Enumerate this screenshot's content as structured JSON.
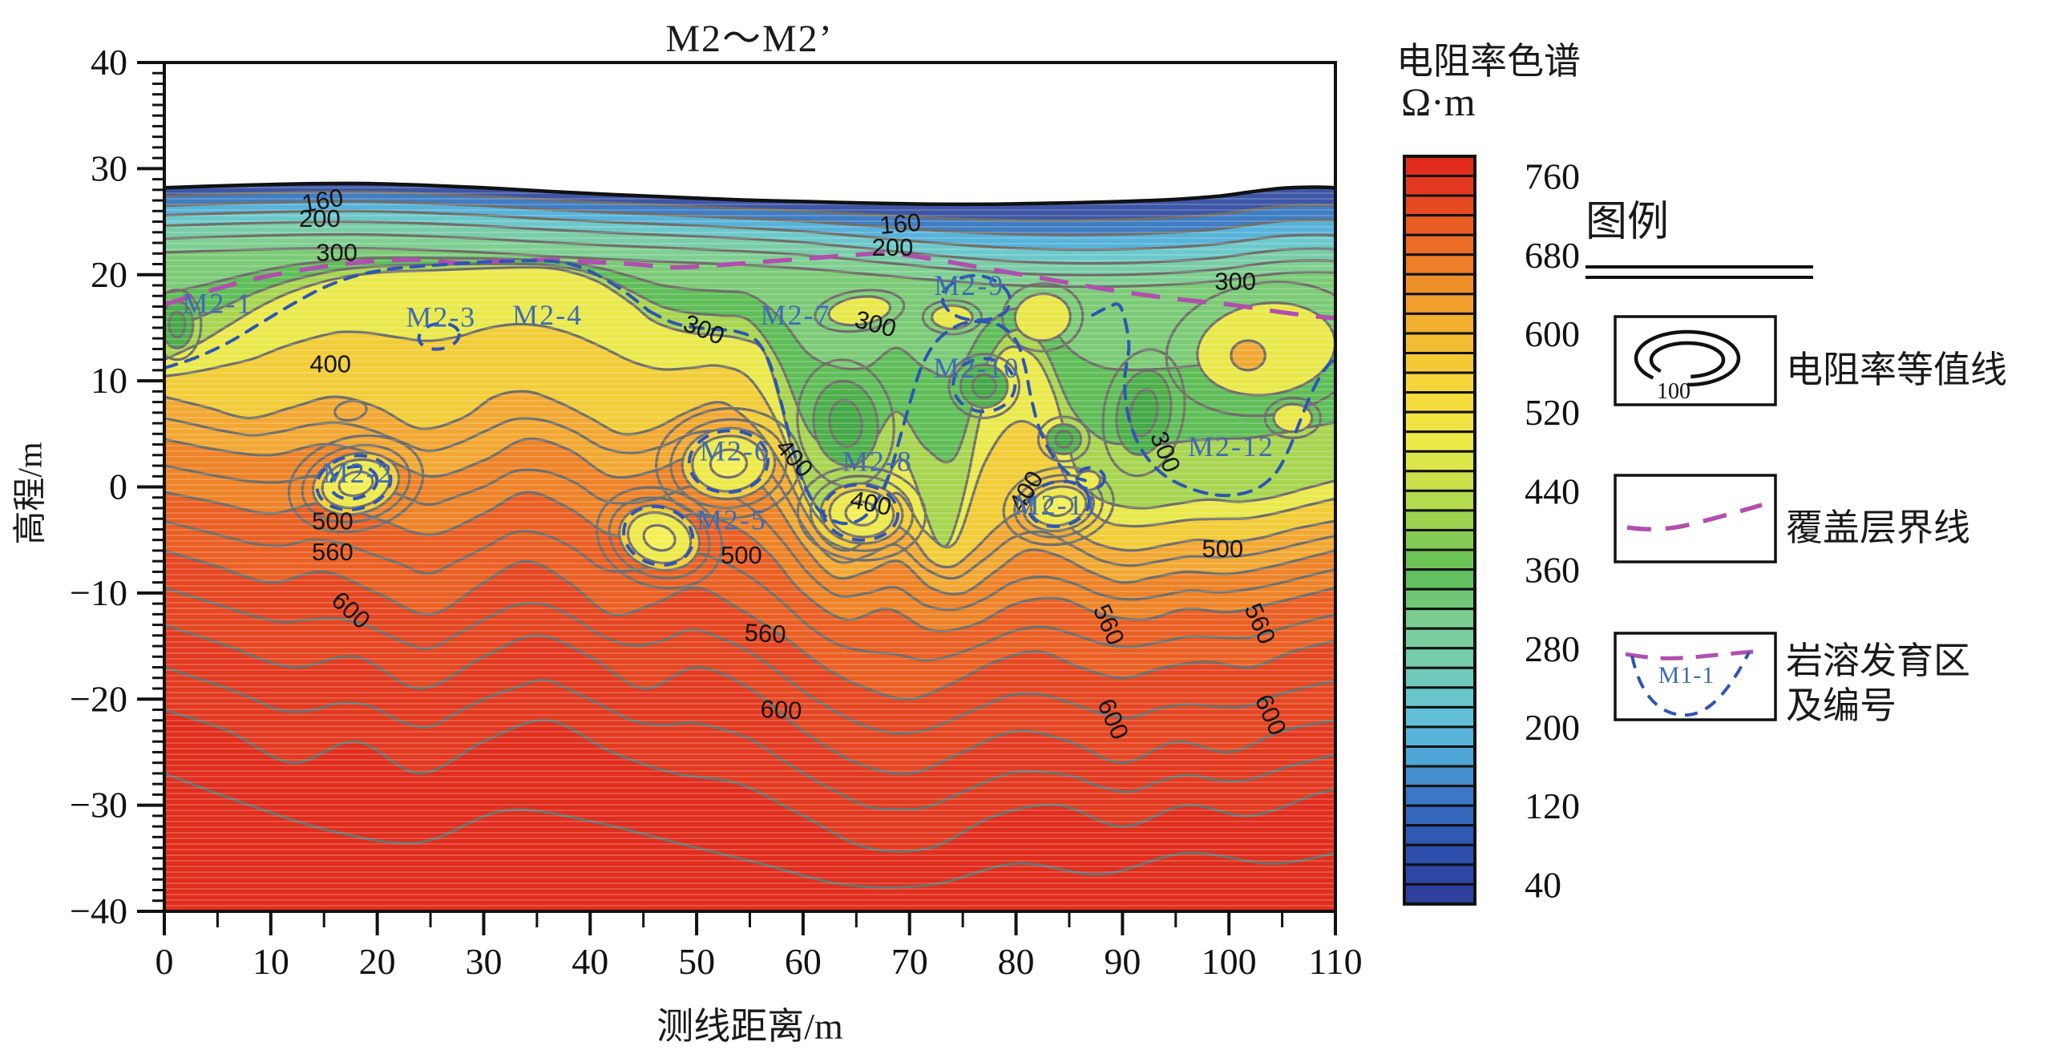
{
  "figure": {
    "title": "M2～M2’"
  },
  "axes": {
    "x_label": "测线距离/m",
    "y_label": "高程/m",
    "x_major_ticks": [
      "0",
      "10",
      "20",
      "30",
      "40",
      "50",
      "60",
      "70",
      "80",
      "90",
      "100",
      "110"
    ],
    "y_major_ticks": [
      "40",
      "30",
      "20",
      "10",
      "0",
      "-10",
      "-20",
      "-30",
      "-40"
    ]
  },
  "colorbar": {
    "title": "电阻率色谱",
    "units": "Ω·m",
    "tick_labels": [
      "760",
      "680",
      "600",
      "520",
      "440",
      "360",
      "280",
      "200",
      "120",
      "40"
    ]
  },
  "legend": {
    "header": "图例",
    "items": [
      {
        "name": "ground-double-line",
        "label": ""
      },
      {
        "name": "resistivity-contour",
        "label": "电阻率等值线",
        "symbol_text": "100"
      },
      {
        "name": "overburden-boundary",
        "label": "覆盖层界线"
      },
      {
        "name": "karst-zone",
        "label_line1": "岩溶发育区",
        "label_line2": "及编号",
        "symbol_text": "M1-1"
      }
    ]
  },
  "chart_data": {
    "type": "contour",
    "title": "M2～M2’",
    "xlabel": "测线距离/m",
    "ylabel": "高程/m",
    "x_range": [
      0,
      110
    ],
    "elev_range": [
      -40,
      40
    ],
    "x_tick_step": 10,
    "x_minor_step": 5,
    "y_tick_step": 10,
    "y_minor_step": 1,
    "colorbar": {
      "title": "电阻率色谱",
      "units": "Ω·m",
      "ticks": [
        760,
        680,
        600,
        520,
        440,
        360,
        280,
        200,
        120,
        40
      ],
      "n_cells": 38,
      "step_per_cell": 20
    },
    "contour_labels": [
      {
        "value": "160",
        "x": 15.0,
        "elev": 26.2,
        "rot": -10
      },
      {
        "value": "200",
        "x": 14.6,
        "elev": 24.5,
        "rot": 0
      },
      {
        "value": "300",
        "x": 16.2,
        "elev": 21.3,
        "rot": 0
      },
      {
        "value": "400",
        "x": 15.6,
        "elev": 10.8,
        "rot": 0
      },
      {
        "value": "500",
        "x": 15.8,
        "elev": -4.0,
        "rot": 0
      },
      {
        "value": "560",
        "x": 15.8,
        "elev": -6.9,
        "rot": 0
      },
      {
        "value": "600",
        "x": 17.0,
        "elev": -12.2,
        "rot": 42
      },
      {
        "value": "160",
        "x": 69.2,
        "elev": 24.0,
        "rot": -5
      },
      {
        "value": "200",
        "x": 68.4,
        "elev": 21.8,
        "rot": 0
      },
      {
        "value": "300",
        "x": 50.4,
        "elev": 14.1,
        "rot": 22
      },
      {
        "value": "300",
        "x": 66.6,
        "elev": 14.6,
        "rot": 15
      },
      {
        "value": "300",
        "x": 100.6,
        "elev": 18.6,
        "rot": 0
      },
      {
        "value": "300",
        "x": 93.3,
        "elev": 3.0,
        "rot": 68
      },
      {
        "value": "400",
        "x": 58.6,
        "elev": 2.2,
        "rot": 48
      },
      {
        "value": "400",
        "x": 66.2,
        "elev": -2.3,
        "rot": 12
      },
      {
        "value": "400",
        "x": 81.6,
        "elev": -0.8,
        "rot": -58
      },
      {
        "value": "500",
        "x": 54.2,
        "elev": -7.2,
        "rot": 0
      },
      {
        "value": "500",
        "x": 99.4,
        "elev": -6.6,
        "rot": 0
      },
      {
        "value": "560",
        "x": 56.4,
        "elev": -14.6,
        "rot": 3
      },
      {
        "value": "600",
        "x": 57.9,
        "elev": -21.8,
        "rot": 3
      },
      {
        "value": "560",
        "x": 88.0,
        "elev": -13.3,
        "rot": 66
      },
      {
        "value": "600",
        "x": 88.4,
        "elev": -22.2,
        "rot": 66
      },
      {
        "value": "560",
        "x": 102.2,
        "elev": -13.2,
        "rot": 66
      },
      {
        "value": "600",
        "x": 103.2,
        "elev": -21.8,
        "rot": 66
      }
    ],
    "karst_zones": [
      {
        "id": "M2-1",
        "x": 5.0,
        "elev": 16.4
      },
      {
        "id": "M2-2",
        "x": 18.2,
        "elev": 0.4
      },
      {
        "id": "M2-3",
        "x": 26.0,
        "elev": 15.1
      },
      {
        "id": "M2-4",
        "x": 36.0,
        "elev": 15.3
      },
      {
        "id": "M2-5",
        "x": 53.3,
        "elev": -4.0
      },
      {
        "id": "M2-6",
        "x": 53.6,
        "elev": 2.5
      },
      {
        "id": "M2-7",
        "x": 59.3,
        "elev": 15.3
      },
      {
        "id": "M2-8",
        "x": 67.0,
        "elev": 1.5
      },
      {
        "id": "M2-9",
        "x": 75.6,
        "elev": 18.1
      },
      {
        "id": "M2-10",
        "x": 76.3,
        "elev": 10.3
      },
      {
        "id": "M2-11",
        "x": 83.8,
        "elev": -2.6
      },
      {
        "id": "M2-12",
        "x": 100.2,
        "elev": 2.9
      }
    ],
    "surface_profile": [
      [
        0,
        28.2
      ],
      [
        6,
        28.4
      ],
      [
        12,
        28.55
      ],
      [
        18,
        28.6
      ],
      [
        24,
        28.45
      ],
      [
        30,
        28.2
      ],
      [
        36,
        27.85
      ],
      [
        42,
        27.55
      ],
      [
        48,
        27.3
      ],
      [
        54,
        27.05
      ],
      [
        60,
        26.9
      ],
      [
        66,
        26.75
      ],
      [
        72,
        26.65
      ],
      [
        78,
        26.65
      ],
      [
        84,
        26.75
      ],
      [
        90,
        26.9
      ],
      [
        95,
        27.1
      ],
      [
        99,
        27.4
      ],
      [
        102,
        27.8
      ],
      [
        105,
        28.15
      ],
      [
        108,
        28.25
      ],
      [
        110,
        28.2
      ]
    ],
    "overburden_boundary": [
      [
        0,
        17.2
      ],
      [
        4,
        18.4
      ],
      [
        8,
        19.5
      ],
      [
        12,
        20.3
      ],
      [
        16,
        20.9
      ],
      [
        20,
        21.3
      ],
      [
        24,
        21.4
      ],
      [
        28,
        21.1
      ],
      [
        32,
        21.3
      ],
      [
        36,
        21.4
      ],
      [
        40,
        21.2
      ],
      [
        44,
        21.0
      ],
      [
        48,
        20.7
      ],
      [
        52,
        20.9
      ],
      [
        56,
        21.2
      ],
      [
        60,
        21.5
      ],
      [
        64,
        21.8
      ],
      [
        68,
        22.0
      ],
      [
        72,
        21.5
      ],
      [
        76,
        20.8
      ],
      [
        80,
        20.1
      ],
      [
        84,
        19.4
      ],
      [
        88,
        18.7
      ],
      [
        92,
        18.1
      ],
      [
        96,
        17.6
      ],
      [
        100,
        17.2
      ],
      [
        104,
        16.6
      ],
      [
        107,
        16.2
      ],
      [
        110,
        15.9
      ]
    ],
    "accent_colors": {
      "karst_dash": "#2e55b4",
      "overburden_dash": "#b14fae",
      "contour_line": "#6f6f69",
      "karst_label": "#3e6bb4"
    }
  }
}
